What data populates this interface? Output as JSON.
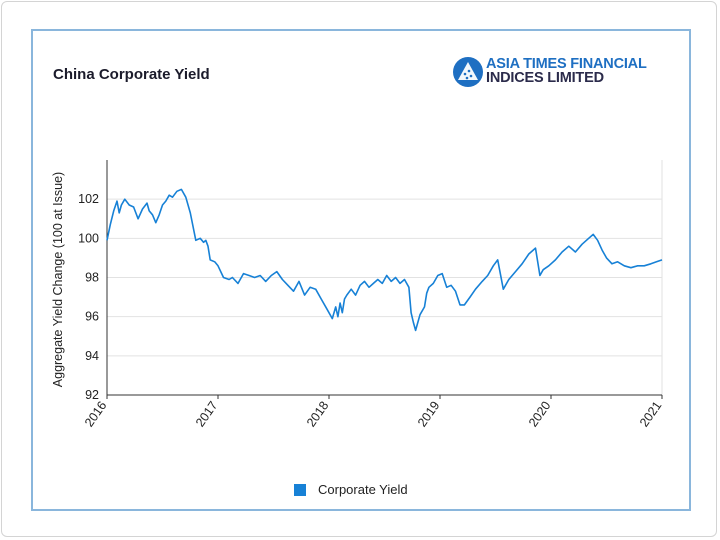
{
  "header": {
    "title": "China Corporate Yield",
    "logo_line1": "ASIA TIMES FINANCIAL",
    "logo_line2": "INDICES LIMITED"
  },
  "colors": {
    "series": "#1781d6",
    "frame": "#8ab6dc",
    "grid": "#e2e2e2"
  },
  "chart_data": {
    "type": "line",
    "title": "China Corporate Yield",
    "xlabel": "",
    "ylabel": "Aggregate Yield Change (100 at Issue)",
    "xlim": [
      2016,
      2021
    ],
    "ylim": [
      92,
      104
    ],
    "x_ticks": [
      "2016",
      "2017",
      "2018",
      "2019",
      "2020",
      "2021"
    ],
    "y_ticks": [
      92,
      94,
      96,
      98,
      100,
      102
    ],
    "grid": "horizontal",
    "legend_position": "bottom-center",
    "series": [
      {
        "name": "Corporate Yield",
        "color": "#1781d6",
        "x": [
          2016.0,
          2016.03,
          2016.06,
          2016.09,
          2016.11,
          2016.13,
          2016.16,
          2016.2,
          2016.24,
          2016.28,
          2016.32,
          2016.36,
          2016.38,
          2016.41,
          2016.44,
          2016.47,
          2016.5,
          2016.53,
          2016.56,
          2016.59,
          2016.63,
          2016.67,
          2016.71,
          2016.75,
          2016.8,
          2016.84,
          2016.87,
          2016.89,
          2016.91,
          2016.93,
          2016.97,
          2017.0,
          2017.05,
          2017.1,
          2017.13,
          2017.18,
          2017.23,
          2017.28,
          2017.33,
          2017.38,
          2017.43,
          2017.48,
          2017.53,
          2017.58,
          2017.63,
          2017.68,
          2017.73,
          2017.78,
          2017.83,
          2017.88,
          2017.93,
          2017.98,
          2018.03,
          2018.06,
          2018.08,
          2018.1,
          2018.12,
          2018.14,
          2018.16,
          2018.2,
          2018.24,
          2018.28,
          2018.32,
          2018.36,
          2018.4,
          2018.44,
          2018.48,
          2018.52,
          2018.56,
          2018.6,
          2018.64,
          2018.68,
          2018.72,
          2018.74,
          2018.76,
          2018.78,
          2018.82,
          2018.86,
          2018.88,
          2018.9,
          2018.94,
          2018.98,
          2019.02,
          2019.06,
          2019.1,
          2019.14,
          2019.18,
          2019.22,
          2019.27,
          2019.32,
          2019.38,
          2019.43,
          2019.48,
          2019.52,
          2019.57,
          2019.62,
          2019.68,
          2019.74,
          2019.8,
          2019.86,
          2019.9,
          2019.93,
          2019.98,
          2020.04,
          2020.1,
          2020.16,
          2020.22,
          2020.28,
          2020.34,
          2020.38,
          2020.42,
          2020.46,
          2020.5,
          2020.55,
          2020.6,
          2020.66,
          2020.72,
          2020.78,
          2020.84,
          2020.9,
          2020.95,
          2021.0
        ],
        "values": [
          99.9,
          100.7,
          101.4,
          101.9,
          101.3,
          101.7,
          102.0,
          101.7,
          101.6,
          101.0,
          101.5,
          101.8,
          101.4,
          101.2,
          100.8,
          101.2,
          101.7,
          101.9,
          102.2,
          102.1,
          102.4,
          102.5,
          102.1,
          101.3,
          99.9,
          100.0,
          99.8,
          99.9,
          99.6,
          98.9,
          98.8,
          98.6,
          98.0,
          97.9,
          98.0,
          97.7,
          98.2,
          98.1,
          98.0,
          98.1,
          97.8,
          98.1,
          98.3,
          97.9,
          97.6,
          97.3,
          97.8,
          97.1,
          97.5,
          97.4,
          96.9,
          96.4,
          95.9,
          96.5,
          96.0,
          96.7,
          96.2,
          96.9,
          97.1,
          97.4,
          97.1,
          97.6,
          97.8,
          97.5,
          97.7,
          97.9,
          97.7,
          98.1,
          97.8,
          98.0,
          97.7,
          97.9,
          97.5,
          96.2,
          95.7,
          95.3,
          96.1,
          96.5,
          97.2,
          97.5,
          97.7,
          98.1,
          98.2,
          97.5,
          97.6,
          97.3,
          96.6,
          96.6,
          97.0,
          97.4,
          97.8,
          98.1,
          98.6,
          98.9,
          97.4,
          97.9,
          98.3,
          98.7,
          99.2,
          99.5,
          98.1,
          98.4,
          98.6,
          98.9,
          99.3,
          99.6,
          99.3,
          99.7,
          100.0,
          100.2,
          99.9,
          99.4,
          99.0,
          98.7,
          98.8,
          98.6,
          98.5,
          98.6,
          98.6,
          98.7,
          98.8,
          98.9
        ]
      }
    ]
  }
}
